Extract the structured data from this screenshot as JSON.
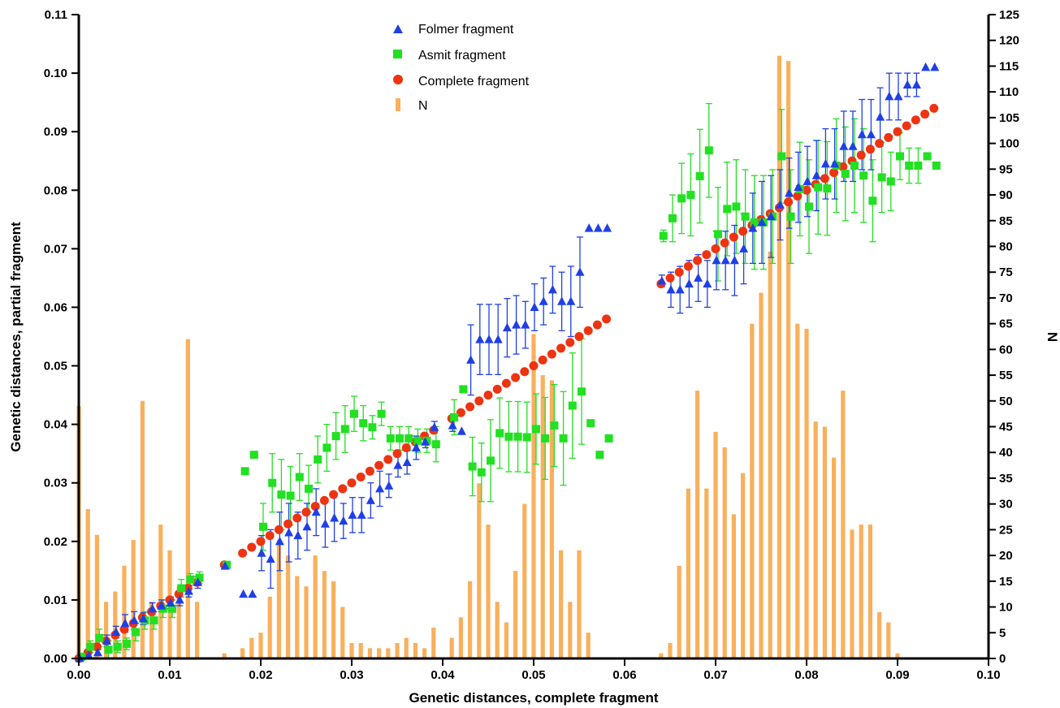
{
  "chart_data": {
    "type": "scatter",
    "xlabel": "Genetic distances, complete fragment",
    "ylabel": "Genetic distances, partial fragment",
    "y2label": "N",
    "xlim": [
      0,
      0.1
    ],
    "ylim": [
      0,
      0.11
    ],
    "y2lim": [
      0,
      125
    ],
    "x_ticks": [
      "0.00",
      "0.01",
      "0.02",
      "0.03",
      "0.04",
      "0.05",
      "0.06",
      "0.07",
      "0.08",
      "0.09",
      "0.10"
    ],
    "y_ticks": [
      "0.00",
      "0.01",
      "0.02",
      "0.03",
      "0.04",
      "0.05",
      "0.06",
      "0.07",
      "0.08",
      "0.09",
      "0.10",
      "0.11"
    ],
    "y2_ticks": [
      "0",
      "5",
      "10",
      "15",
      "20",
      "25",
      "30",
      "35",
      "40",
      "45",
      "50",
      "55",
      "60",
      "65",
      "70",
      "75",
      "80",
      "85",
      "90",
      "95",
      "100",
      "105",
      "110",
      "115",
      "120",
      "125"
    ],
    "grid": false,
    "legend_position": "top-center",
    "colors": {
      "folmer": "#1f3fe6",
      "asmit": "#22e022",
      "complete": "#ee3311",
      "n": "#f9b05c"
    },
    "series": [
      {
        "name": "Folmer fragment",
        "marker": "triangle",
        "x": [
          0.0,
          0.001,
          0.002,
          0.003,
          0.004,
          0.005,
          0.006,
          0.007,
          0.008,
          0.009,
          0.01,
          0.011,
          0.012,
          0.013,
          0.016,
          0.018,
          0.019,
          0.02,
          0.021,
          0.022,
          0.023,
          0.024,
          0.025,
          0.026,
          0.027,
          0.028,
          0.029,
          0.03,
          0.031,
          0.032,
          0.033,
          0.034,
          0.035,
          0.036,
          0.037,
          0.038,
          0.039,
          0.041,
          0.042,
          0.043,
          0.044,
          0.045,
          0.046,
          0.047,
          0.048,
          0.049,
          0.05,
          0.051,
          0.052,
          0.053,
          0.054,
          0.055,
          0.056,
          0.057,
          0.058,
          0.064,
          0.065,
          0.066,
          0.067,
          0.068,
          0.069,
          0.07,
          0.071,
          0.072,
          0.073,
          0.074,
          0.075,
          0.076,
          0.077,
          0.078,
          0.079,
          0.08,
          0.081,
          0.082,
          0.083,
          0.084,
          0.085,
          0.086,
          0.087,
          0.088,
          0.089,
          0.09,
          0.091,
          0.092,
          0.093,
          0.094
        ],
        "y": [
          0.0,
          0.0005,
          0.001,
          0.003,
          0.0045,
          0.006,
          0.0065,
          0.0068,
          0.0085,
          0.009,
          0.0095,
          0.01,
          0.0115,
          0.013,
          0.0158,
          0.011,
          0.011,
          0.018,
          0.017,
          0.02,
          0.0215,
          0.021,
          0.0225,
          0.025,
          0.023,
          0.024,
          0.0235,
          0.0245,
          0.0245,
          0.027,
          0.029,
          0.0295,
          0.033,
          0.0335,
          0.036,
          0.037,
          0.0395,
          0.0398,
          0.0388,
          0.051,
          0.0545,
          0.0545,
          0.0545,
          0.0565,
          0.057,
          0.057,
          0.06,
          0.061,
          0.063,
          0.061,
          0.061,
          0.066,
          0.0735,
          0.0735,
          0.0735,
          0.0645,
          0.063,
          0.063,
          0.064,
          0.065,
          0.064,
          0.068,
          0.068,
          0.068,
          0.07,
          0.0735,
          0.0745,
          0.0755,
          0.0775,
          0.0795,
          0.0805,
          0.0815,
          0.0825,
          0.0845,
          0.0845,
          0.0875,
          0.0875,
          0.0895,
          0.0895,
          0.0925,
          0.096,
          0.096,
          0.098,
          0.098,
          0.101,
          0.101
        ],
        "y_err": [
          0,
          0,
          0.0005,
          0.001,
          0.001,
          0.0015,
          0.0015,
          0.001,
          0.001,
          0.001,
          0.001,
          0.001,
          0.001,
          0.001,
          0,
          0,
          0,
          0.003,
          0.005,
          0.005,
          0.005,
          0.004,
          0.004,
          0.004,
          0.004,
          0.004,
          0.003,
          0.003,
          0.003,
          0.003,
          0.003,
          0.002,
          0.002,
          0.002,
          0.002,
          0.001,
          0.001,
          0.001,
          0,
          0.006,
          0.006,
          0.006,
          0.006,
          0.005,
          0.005,
          0.004,
          0.004,
          0.004,
          0.004,
          0.005,
          0.006,
          0.006,
          0,
          0,
          0,
          0.001,
          0.003,
          0.004,
          0.004,
          0.004,
          0.004,
          0.005,
          0.005,
          0.006,
          0.006,
          0.006,
          0.007,
          0.007,
          0.006,
          0.006,
          0.006,
          0.006,
          0.006,
          0.006,
          0.006,
          0.006,
          0.006,
          0.006,
          0.006,
          0.005,
          0.004,
          0.004,
          0.002,
          0.002,
          0,
          0
        ]
      },
      {
        "name": "Asmit fragment",
        "marker": "square",
        "x": [
          0.0,
          0.001,
          0.002,
          0.003,
          0.004,
          0.005,
          0.006,
          0.007,
          0.008,
          0.009,
          0.01,
          0.011,
          0.012,
          0.013,
          0.016,
          0.018,
          0.019,
          0.02,
          0.021,
          0.022,
          0.023,
          0.024,
          0.025,
          0.026,
          0.027,
          0.028,
          0.029,
          0.03,
          0.031,
          0.032,
          0.033,
          0.034,
          0.035,
          0.036,
          0.037,
          0.038,
          0.039,
          0.041,
          0.042,
          0.043,
          0.044,
          0.045,
          0.046,
          0.047,
          0.048,
          0.049,
          0.05,
          0.051,
          0.052,
          0.053,
          0.054,
          0.055,
          0.056,
          0.057,
          0.058,
          0.064,
          0.065,
          0.066,
          0.067,
          0.068,
          0.069,
          0.07,
          0.071,
          0.072,
          0.073,
          0.074,
          0.075,
          0.076,
          0.077,
          0.078,
          0.079,
          0.08,
          0.081,
          0.082,
          0.083,
          0.084,
          0.085,
          0.086,
          0.087,
          0.088,
          0.089,
          0.09,
          0.091,
          0.092,
          0.093,
          0.094
        ],
        "y": [
          0.0003,
          0.002,
          0.0035,
          0.0015,
          0.002,
          0.0025,
          0.0045,
          0.0065,
          0.0065,
          0.0085,
          0.0085,
          0.012,
          0.0135,
          0.0138,
          0.016,
          0.032,
          0.0348,
          0.0225,
          0.03,
          0.028,
          0.0278,
          0.031,
          0.029,
          0.034,
          0.036,
          0.038,
          0.0392,
          0.0418,
          0.0402,
          0.0395,
          0.0418,
          0.0376,
          0.0376,
          0.0376,
          0.0372,
          0.0372,
          0.0366,
          0.0412,
          0.046,
          0.0328,
          0.0318,
          0.0338,
          0.0385,
          0.0379,
          0.0379,
          0.0378,
          0.0392,
          0.0376,
          0.0398,
          0.0376,
          0.0432,
          0.0456,
          0.0402,
          0.0348,
          0.0376,
          0.0722,
          0.0752,
          0.0786,
          0.0792,
          0.0824,
          0.0868,
          0.0725,
          0.0768,
          0.0772,
          0.0755,
          0.0745,
          0.0745,
          0.0755,
          0.0858,
          0.0755,
          0.0802,
          0.0772,
          0.0805,
          0.0803,
          0.0842,
          0.0828,
          0.0842,
          0.0825,
          0.0782,
          0.0822,
          0.0815,
          0.0858,
          0.0842,
          0.0842,
          0.0858,
          0.0842
        ],
        "y_err": [
          0,
          0.001,
          0.0015,
          0.0015,
          0.001,
          0.001,
          0.0015,
          0.0015,
          0.0015,
          0.0015,
          0.0015,
          0.0015,
          0.001,
          0.001,
          0,
          0,
          0,
          0.004,
          0.005,
          0.006,
          0.005,
          0.004,
          0.004,
          0.004,
          0.004,
          0.004,
          0.004,
          0.003,
          0.003,
          0.002,
          0.002,
          0.002,
          0.002,
          0.002,
          0.002,
          0.002,
          0.003,
          0.003,
          0,
          0.005,
          0.005,
          0.007,
          0.006,
          0.006,
          0.006,
          0.006,
          0.006,
          0.007,
          0.007,
          0.008,
          0.009,
          0.009,
          0,
          0,
          0,
          0.001,
          0.004,
          0.006,
          0.007,
          0.008,
          0.008,
          0.008,
          0.008,
          0.008,
          0.008,
          0.008,
          0.008,
          0.008,
          0.008,
          0.008,
          0.008,
          0.008,
          0.008,
          0.008,
          0.008,
          0.008,
          0.008,
          0.008,
          0.007,
          0.006,
          0.005,
          0.004,
          0.003,
          0.003,
          0,
          0
        ]
      },
      {
        "name": "Complete fragment",
        "marker": "circle",
        "x": [
          0.0,
          0.001,
          0.002,
          0.003,
          0.004,
          0.005,
          0.006,
          0.007,
          0.008,
          0.009,
          0.01,
          0.011,
          0.012,
          0.013,
          0.016,
          0.018,
          0.019,
          0.02,
          0.021,
          0.022,
          0.023,
          0.024,
          0.025,
          0.026,
          0.027,
          0.028,
          0.029,
          0.03,
          0.031,
          0.032,
          0.033,
          0.034,
          0.035,
          0.036,
          0.037,
          0.038,
          0.039,
          0.041,
          0.042,
          0.043,
          0.044,
          0.045,
          0.046,
          0.047,
          0.048,
          0.049,
          0.05,
          0.051,
          0.052,
          0.053,
          0.054,
          0.055,
          0.056,
          0.057,
          0.058,
          0.064,
          0.065,
          0.066,
          0.067,
          0.068,
          0.069,
          0.07,
          0.071,
          0.072,
          0.073,
          0.074,
          0.075,
          0.076,
          0.077,
          0.078,
          0.079,
          0.08,
          0.081,
          0.082,
          0.083,
          0.084,
          0.085,
          0.086,
          0.087,
          0.088,
          0.089,
          0.09,
          0.091,
          0.092,
          0.093,
          0.094
        ],
        "y": [
          0.0,
          0.001,
          0.002,
          0.003,
          0.004,
          0.005,
          0.006,
          0.007,
          0.008,
          0.009,
          0.01,
          0.011,
          0.012,
          0.013,
          0.016,
          0.018,
          0.019,
          0.02,
          0.021,
          0.022,
          0.023,
          0.024,
          0.025,
          0.026,
          0.027,
          0.028,
          0.029,
          0.03,
          0.031,
          0.032,
          0.033,
          0.034,
          0.035,
          0.036,
          0.037,
          0.038,
          0.039,
          0.041,
          0.042,
          0.043,
          0.044,
          0.045,
          0.046,
          0.047,
          0.048,
          0.049,
          0.05,
          0.051,
          0.052,
          0.053,
          0.054,
          0.055,
          0.056,
          0.057,
          0.058,
          0.064,
          0.065,
          0.066,
          0.067,
          0.068,
          0.069,
          0.07,
          0.071,
          0.072,
          0.073,
          0.074,
          0.075,
          0.076,
          0.077,
          0.078,
          0.079,
          0.08,
          0.081,
          0.082,
          0.083,
          0.084,
          0.085,
          0.086,
          0.087,
          0.088,
          0.089,
          0.09,
          0.091,
          0.092,
          0.093,
          0.094
        ]
      },
      {
        "name": "N",
        "marker": "bar",
        "axis": "right",
        "x": [
          0.0,
          0.001,
          0.002,
          0.003,
          0.004,
          0.005,
          0.006,
          0.007,
          0.008,
          0.009,
          0.01,
          0.011,
          0.012,
          0.013,
          0.016,
          0.018,
          0.019,
          0.02,
          0.021,
          0.022,
          0.023,
          0.024,
          0.025,
          0.026,
          0.027,
          0.028,
          0.029,
          0.03,
          0.031,
          0.032,
          0.033,
          0.034,
          0.035,
          0.036,
          0.037,
          0.038,
          0.039,
          0.041,
          0.042,
          0.043,
          0.044,
          0.045,
          0.046,
          0.047,
          0.048,
          0.049,
          0.05,
          0.051,
          0.052,
          0.053,
          0.054,
          0.055,
          0.056,
          0.057,
          0.058,
          0.064,
          0.065,
          0.066,
          0.067,
          0.068,
          0.069,
          0.07,
          0.071,
          0.072,
          0.073,
          0.074,
          0.075,
          0.076,
          0.077,
          0.078,
          0.079,
          0.08,
          0.081,
          0.082,
          0.083,
          0.084,
          0.085,
          0.086,
          0.087,
          0.088,
          0.089,
          0.09,
          0.091,
          0.092,
          0.093,
          0.094
        ],
        "values": [
          49,
          29,
          24,
          11,
          13,
          18,
          23,
          50,
          11,
          26,
          21,
          14,
          62,
          11,
          1,
          2,
          4,
          5,
          12,
          23,
          20,
          16,
          14,
          20,
          17,
          15,
          10,
          3,
          3,
          2,
          2,
          2,
          3,
          4,
          3,
          2,
          6,
          4,
          8,
          15,
          34,
          26,
          11,
          7,
          17,
          30,
          63,
          55,
          54,
          21,
          11,
          21,
          5,
          0,
          0,
          1,
          3,
          18,
          33,
          52,
          33,
          44,
          41,
          28,
          36,
          65,
          71,
          79,
          117,
          116,
          65,
          64,
          46,
          45,
          39,
          52,
          25,
          26,
          26,
          9,
          7,
          1,
          0,
          0,
          0,
          0
        ]
      }
    ]
  }
}
